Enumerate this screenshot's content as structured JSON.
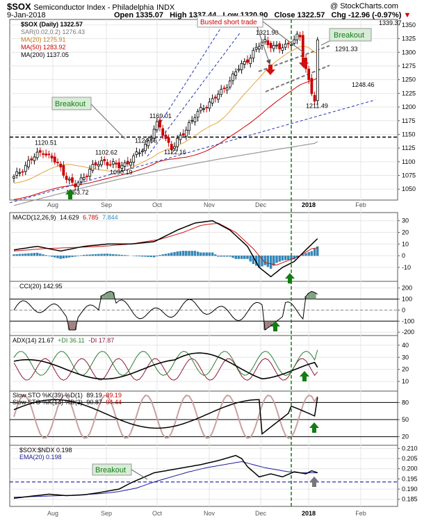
{
  "header": {
    "symbol": "$SOX",
    "name": "Semiconductor Index - Philadelphia",
    "exchange": "INDX",
    "credit": "@ StockCharts.com",
    "date": "9-Jan-2018",
    "open": "Open 1335.07",
    "high": "High 1337.44",
    "low": "Low 1320.90",
    "close": "Close 1322.57",
    "chg": "Chg -12.96 (-0.97%)"
  },
  "legend": {
    "price": "$SOX (Daily) 1322.57",
    "sar": "SAR(0.02,0.2) 1276.43",
    "ma20": "MA(20) 1275.91",
    "ma50": "MA(50) 1283.92",
    "ma200": "MA(200) 1137.05",
    "macd_name": "MACD(12,26,9)",
    "macd_v1": "14.629",
    "macd_v2": "6.785",
    "macd_v3": "7.844",
    "cci": "CCI(20) 142.95",
    "adx_name": "ADX(14) 21.67",
    "adx_pdi": "+DI 36.11",
    "adx_mdi": "-DI 17.87",
    "sto1_name": "Slow STO %K(39) %D(1)",
    "sto1_v1": "89.19",
    "sto1_v2": "89.19",
    "sto2_name": "Slow STO %K(14) %D(3)",
    "sto2_v1": "90.87",
    "sto2_v2": "94.44",
    "ratio": "$SOX:$NDX 0.198",
    "ema": "EMA(20) 0.198"
  },
  "annotations": {
    "busted": "Busted short trade",
    "breakout_right": "Breakout",
    "breakout_left": "Breakout",
    "breakout_ratio": "Breakout"
  },
  "colors": {
    "up": "#000000",
    "down": "#cc0000",
    "ma20": "#e6a23c",
    "ma50": "#cc0000",
    "ma200": "#999999",
    "sar": "#999999",
    "trend": "#2233bb",
    "signal_green": "#137d13",
    "signal_red": "#d01010",
    "histogram": "#2e8bc0",
    "cci_fill_pos": "#6e8f6e",
    "cci_fill_neg": "#8f6a6a",
    "pdi": "#2e7d32",
    "mdi": "#8b1a3a",
    "ema": "#1a1aa0",
    "annotation_box": "#d8ecd8"
  },
  "chart_data": [
    {
      "type": "line",
      "title": "$SOX (Daily)",
      "ylim": [
        1030,
        1360
      ],
      "yticks": [
        1050,
        1075,
        1100,
        1125,
        1150,
        1175,
        1200,
        1225,
        1250,
        1275,
        1300,
        1325,
        1350
      ],
      "x_months": [
        "Aug",
        "Sep",
        "Oct",
        "Nov",
        "Dec",
        "2018",
        "Feb"
      ],
      "close_anchors": [
        [
          "2017-07-13",
          1070
        ],
        [
          "2017-07-20",
          1100
        ],
        [
          "2017-07-27",
          1120.51
        ],
        [
          "2017-08-03",
          1095
        ],
        [
          "2017-08-11",
          1053
        ],
        [
          "2017-08-18",
          1085
        ],
        [
          "2017-08-25",
          1102.62
        ],
        [
          "2017-09-01",
          1090.19
        ],
        [
          "2017-09-08",
          1105
        ],
        [
          "2017-09-13",
          1124.66
        ],
        [
          "2017-09-20",
          1169.01
        ],
        [
          "2017-09-27",
          1122.16
        ],
        [
          "2017-10-05",
          1170
        ],
        [
          "2017-10-12",
          1200
        ],
        [
          "2017-10-20",
          1225
        ],
        [
          "2017-10-27",
          1262
        ],
        [
          "2017-11-03",
          1292
        ],
        [
          "2017-11-10",
          1321.9
        ],
        [
          "2017-11-17",
          1305
        ],
        [
          "2017-11-27",
          1330
        ],
        [
          "2017-11-29",
          1285
        ],
        [
          "2017-12-01",
          1255
        ],
        [
          "2017-12-04",
          1211.49
        ],
        [
          "2017-12-08",
          1250
        ],
        [
          "2017-12-13",
          1242
        ],
        [
          "2017-12-18",
          1291.33
        ],
        [
          "2017-12-21",
          1265
        ],
        [
          "2017-12-26",
          1248.46
        ],
        [
          "2017-12-29",
          1262
        ],
        [
          "2018-01-03",
          1310
        ],
        [
          "2018-01-08",
          1339.37
        ],
        [
          "2018-01-09",
          1322.57
        ]
      ],
      "price_labels": [
        "1120.51",
        "1102.62",
        "1124.66",
        "1169.01",
        "1122.16",
        "1090.19",
        "1053.72",
        "1321.90",
        "1211.49",
        "1291.33",
        "1248.46",
        "1339.37"
      ],
      "ma20_last": 1275.91,
      "ma50_last": 1283.92,
      "ma200_last": 1137.05,
      "horizontal_level": 1145
    },
    {
      "type": "line",
      "title": "MACD(12,26,9)",
      "ylim": [
        -22,
        37
      ],
      "yticks": [
        -10,
        0,
        10,
        20,
        30
      ],
      "series": [
        {
          "name": "MACD",
          "values": [
            [
              0,
              5
            ],
            [
              8,
              8
            ],
            [
              16,
              4
            ],
            [
              24,
              8
            ],
            [
              32,
              10
            ],
            [
              40,
              10
            ],
            [
              48,
              12
            ],
            [
              56,
              22
            ],
            [
              62,
              28
            ],
            [
              68,
              30
            ],
            [
              74,
              22
            ],
            [
              80,
              8
            ],
            [
              84,
              -10
            ],
            [
              88,
              -18
            ],
            [
              92,
              -10
            ],
            [
              96,
              -5
            ],
            [
              100,
              5
            ],
            [
              104,
              14.629
            ]
          ]
        },
        {
          "name": "Signal",
          "values": [
            [
              0,
              4
            ],
            [
              10,
              6
            ],
            [
              20,
              7
            ],
            [
              30,
              8
            ],
            [
              40,
              10
            ],
            [
              50,
              14
            ],
            [
              58,
              20
            ],
            [
              64,
              26
            ],
            [
              70,
              28
            ],
            [
              76,
              20
            ],
            [
              82,
              6
            ],
            [
              86,
              -6
            ],
            [
              90,
              -8
            ],
            [
              94,
              -4
            ],
            [
              98,
              0
            ],
            [
              102,
              6
            ],
            [
              104,
              6.785
            ]
          ]
        },
        {
          "name": "Histogram",
          "last": 7.844
        }
      ]
    },
    {
      "type": "line",
      "title": "CCI(20)",
      "ylim": [
        -230,
        260
      ],
      "yticks": [
        -200,
        -100,
        0,
        100,
        200
      ],
      "last": 142.95
    },
    {
      "type": "line",
      "title": "ADX(14)",
      "ylim": [
        2,
        48
      ],
      "yticks": [
        10,
        20,
        30,
        40
      ],
      "series": [
        {
          "name": "ADX",
          "last": 21.67
        },
        {
          "name": "+DI",
          "last": 36.11
        },
        {
          "name": "-DI",
          "last": 17.87
        }
      ]
    },
    {
      "type": "line",
      "title": "Slow STO",
      "ylim": [
        5,
        100
      ],
      "yticks": [
        20,
        50,
        80
      ],
      "series": [
        {
          "name": "Slow STO %K(39) %D(1)",
          "last": 89.19
        },
        {
          "name": "Slow STO %K(14) %D(3)",
          "last": 90.87
        }
      ]
    },
    {
      "type": "line",
      "title": "$SOX:$NDX",
      "ylim": [
        0.1815,
        0.2115
      ],
      "yticks": [
        0.185,
        0.19,
        0.195,
        0.2,
        0.205,
        0.21
      ],
      "ytick_labels": [
        "0.185",
        "0.190",
        "0.195",
        "0.200",
        "0.205",
        "0.210"
      ],
      "series": [
        {
          "name": "$SOX:$NDX",
          "values": [
            [
              0,
              0.1855
            ],
            [
              6,
              0.1865
            ],
            [
              12,
              0.1875
            ],
            [
              18,
              0.1868
            ],
            [
              24,
              0.1872
            ],
            [
              28,
              0.188
            ],
            [
              32,
              0.189
            ],
            [
              36,
              0.19
            ],
            [
              40,
              0.193
            ],
            [
              44,
              0.1955
            ],
            [
              48,
              0.198
            ],
            [
              52,
              0.199
            ],
            [
              56,
              0.2
            ],
            [
              60,
              0.201
            ],
            [
              64,
              0.202
            ],
            [
              70,
              0.204
            ],
            [
              76,
              0.2065
            ],
            [
              78,
              0.205
            ],
            [
              80,
              0.201
            ],
            [
              84,
              0.196
            ],
            [
              88,
              0.1975
            ],
            [
              92,
              0.196
            ],
            [
              96,
              0.1985
            ],
            [
              100,
              0.1975
            ],
            [
              102,
              0.199
            ],
            [
              104,
              0.198
            ]
          ]
        },
        {
          "name": "EMA(20)",
          "values": [
            [
              0,
              0.186
            ],
            [
              10,
              0.1865
            ],
            [
              20,
              0.187
            ],
            [
              30,
              0.1878
            ],
            [
              36,
              0.1888
            ],
            [
              42,
              0.1905
            ],
            [
              48,
              0.1935
            ],
            [
              54,
              0.196
            ],
            [
              60,
              0.1985
            ],
            [
              66,
              0.2005
            ],
            [
              72,
              0.202
            ],
            [
              78,
              0.2035
            ],
            [
              82,
              0.202
            ],
            [
              86,
              0.2005
            ],
            [
              90,
              0.1995
            ],
            [
              94,
              0.1985
            ],
            [
              98,
              0.198
            ],
            [
              104,
              0.198
            ]
          ]
        }
      ],
      "horizontal_level": 0.1935
    }
  ]
}
